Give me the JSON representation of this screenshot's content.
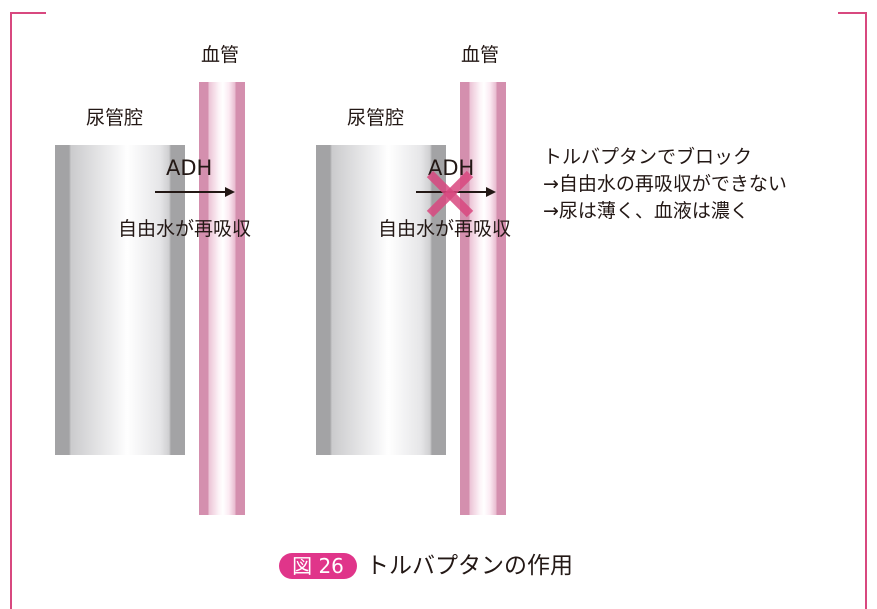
{
  "panels": [
    {
      "vessel_label": "血管",
      "tubule_label": "尿管腔",
      "hormone_label": "ADH",
      "effect_label": "自由水が再吸収",
      "blocked": false
    },
    {
      "vessel_label": "血管",
      "tubule_label": "尿管腔",
      "hormone_label": "ADH",
      "effect_label": "自由水が再吸収",
      "blocked": true
    }
  ],
  "note": {
    "lines": [
      "トルバプタンでブロック",
      "→自由水の再吸収ができない",
      "→尿は薄く、血液は濃く"
    ]
  },
  "caption": {
    "badge": "図 26",
    "title": "トルバプタンの作用"
  },
  "colors": {
    "frame": "#d8487f",
    "vessel": "#d48fae",
    "tubule": "#a3a3a5",
    "block_mark": "#d8487f",
    "badge_bg": "#e0358a"
  }
}
